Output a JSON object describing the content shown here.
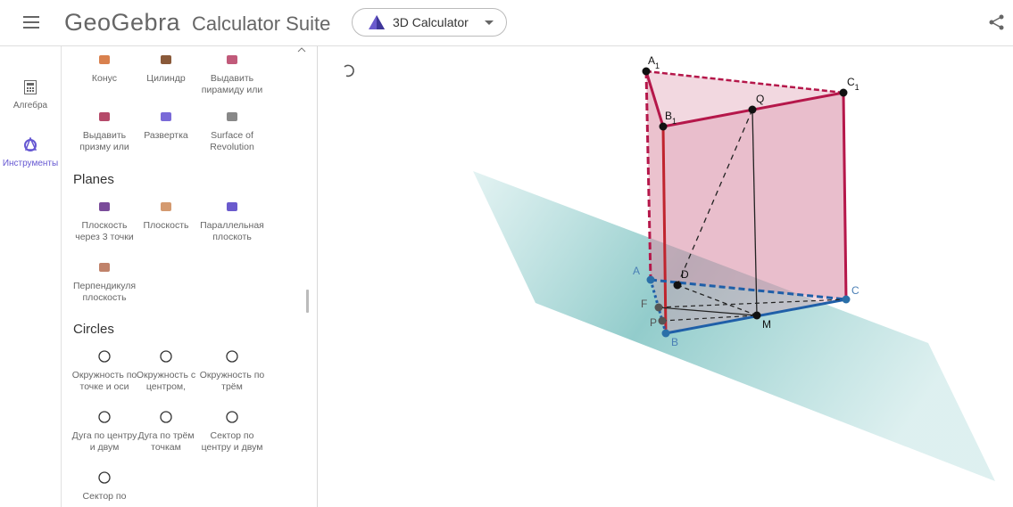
{
  "header": {
    "brand": "GeoGebra",
    "suite": "Calculator Suite",
    "app": "3D Calculator"
  },
  "rail": {
    "tabs": [
      "Алгебра",
      "Инструменты"
    ]
  },
  "tools": {
    "top": [
      "Конус",
      "Цилиндр",
      "Выдавить пирамиду или",
      "Выдавить призму или",
      "Развертка",
      "Surface of Revolution"
    ],
    "sections": [
      {
        "title": "Planes",
        "items": [
          "Плоскость через 3 точки",
          "Плоскость",
          "Параллельная плоскоть",
          "Перпендикуля плоскость"
        ]
      },
      {
        "title": "Circles",
        "items": [
          "Окружность по точке и оси",
          "Окружность с центром,",
          "Окружность по трём",
          "Дуга по центру и двум",
          "Дуга по трём точкам",
          "Сектор по центру и двум",
          "Сектор по"
        ]
      }
    ]
  },
  "graphics": {
    "points": [
      {
        "name": "A",
        "sub": "1"
      },
      {
        "name": "C",
        "sub": "1"
      },
      {
        "name": "B",
        "sub": "1"
      },
      {
        "name": "Q"
      },
      {
        "name": "D"
      },
      {
        "name": "A"
      },
      {
        "name": "C"
      },
      {
        "name": "F"
      },
      {
        "name": "P"
      },
      {
        "name": "M"
      },
      {
        "name": "B"
      }
    ]
  }
}
